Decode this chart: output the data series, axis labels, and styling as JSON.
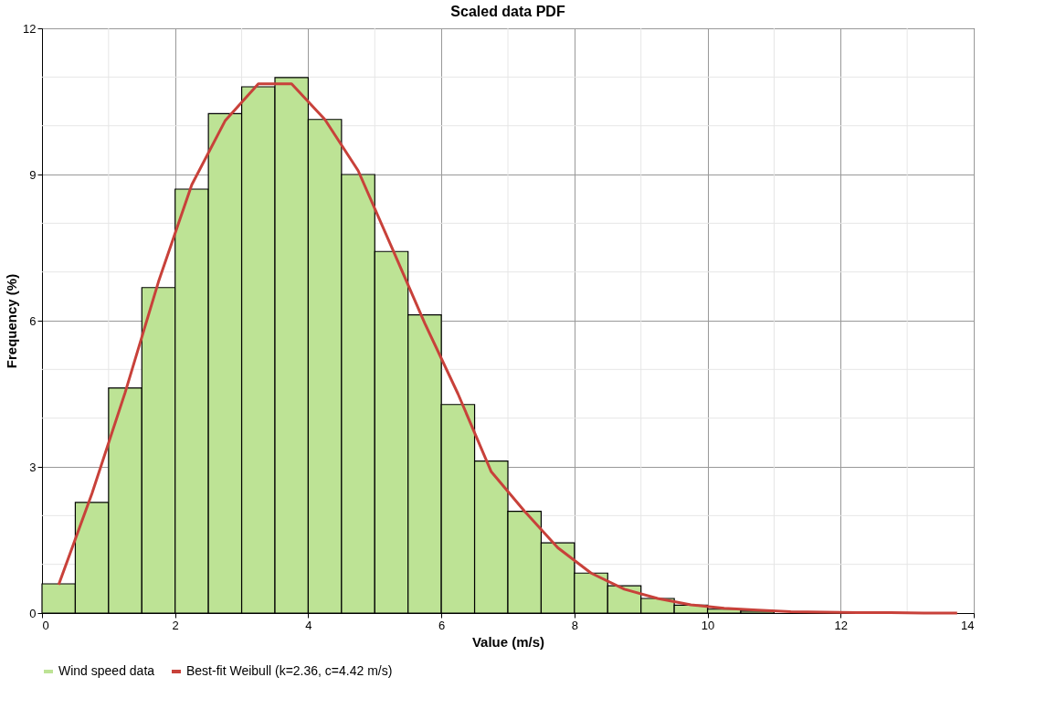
{
  "chart_data": {
    "type": "histogram",
    "title": "Scaled data PDF",
    "xlabel": "Value (m/s)",
    "ylabel": "Frequency (%)",
    "bins": [
      0,
      0.5,
      1,
      1.5,
      2,
      2.5,
      3,
      3.5,
      4,
      4.5,
      5,
      5.5,
      6,
      6.5,
      7,
      7.5,
      8,
      8.5,
      9,
      9.5,
      10,
      10.5,
      11
    ],
    "series": [
      {
        "name": "Wind speed data",
        "color": "#bde395",
        "values": [
          0.6,
          2.27,
          4.62,
          6.68,
          8.7,
          10.25,
          10.8,
          10.99,
          10.13,
          9.0,
          7.42,
          6.12,
          4.28,
          3.12,
          2.09,
          1.44,
          0.82,
          0.56,
          0.3,
          0.16,
          0.08,
          0.04
        ]
      },
      {
        "name": "Best-fit Weibull (k=2.36, c=4.42 m/s)",
        "type": "line",
        "color": "#c8413a",
        "x": [
          0.25,
          0.75,
          1.25,
          1.75,
          2.25,
          2.75,
          3.25,
          3.75,
          4.25,
          4.75,
          5.25,
          5.75,
          6.25,
          6.75,
          7.25,
          7.75,
          8.25,
          8.75,
          9.25,
          9.75,
          10.25,
          10.75,
          11.25,
          11.75,
          12.25,
          12.75,
          13.25,
          13.75
        ],
        "values": [
          0.58,
          2.45,
          4.53,
          6.8,
          8.79,
          10.1,
          10.86,
          10.86,
          10.13,
          9.08,
          7.52,
          5.95,
          4.5,
          2.9,
          2.09,
          1.34,
          0.82,
          0.49,
          0.3,
          0.17,
          0.1,
          0.06,
          0.03,
          0.02,
          0.01,
          0.01,
          0,
          0
        ]
      }
    ],
    "xlim": [
      0,
      14
    ],
    "xticks": [
      0,
      2,
      4,
      6,
      8,
      10,
      12,
      14
    ],
    "ylim": [
      0,
      12
    ],
    "yticks": [
      0,
      3,
      6,
      9,
      12
    ],
    "grid": true,
    "legend": "bottom"
  }
}
